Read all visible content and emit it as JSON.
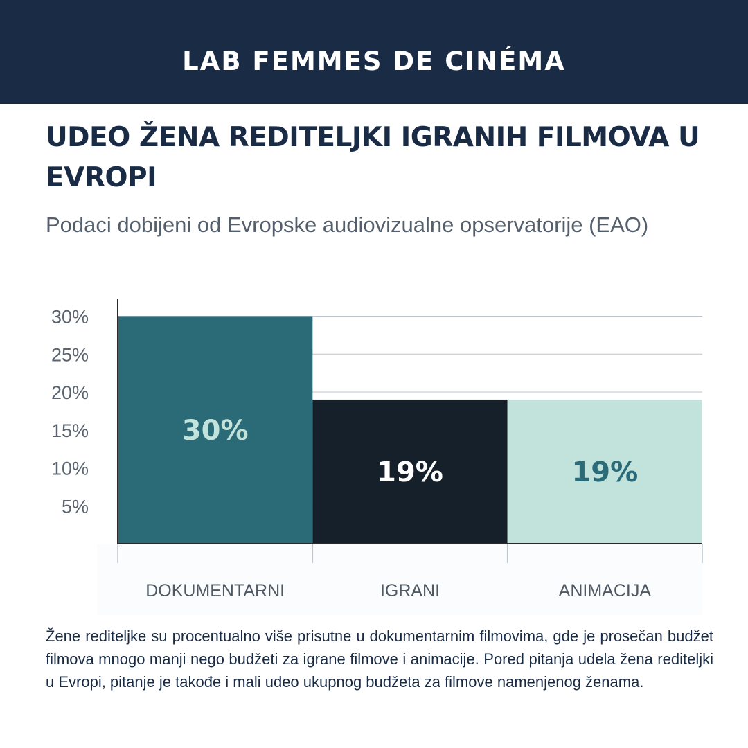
{
  "header": {
    "title": "LAB FEMMES DE CINÉMA"
  },
  "headline": "UDEO ŽENA REDITELJKI IGRANIH FILMOVA U EVROPI",
  "subtitle": "Podaci dobijeni od Evropske audiovizualne opservatorije (EAO)",
  "chart_data": {
    "type": "bar",
    "categories": [
      "DOKUMENTARNI",
      "IGRANI",
      "ANIMACIJA"
    ],
    "values": [
      30,
      19,
      19
    ],
    "data_labels": [
      "30%",
      "19%",
      "19%"
    ],
    "yticks": [
      "5%",
      "10%",
      "15%",
      "20%",
      "25%",
      "30%"
    ],
    "ytick_values": [
      5,
      10,
      15,
      20,
      25,
      30
    ],
    "ylim": [
      0,
      32
    ],
    "grid": true,
    "bar_colors": [
      "#2a6b77",
      "#15202b",
      "#c2e2dc"
    ],
    "label_colors": [
      "#c2e2dc",
      "#ffffff",
      "#2a6b77"
    ]
  },
  "note": "Žene rediteljke su procentualno više prisutne u dokumentarnim filmovima, gde je prosečan budžet filmova mnogo manji nego budžeti za igrane filmove i animacije. Pored pitanja udela žena rediteljki u Evropi, pitanje je takođe i mali udeo ukupnog budžeta za filmove namenjenog ženama."
}
